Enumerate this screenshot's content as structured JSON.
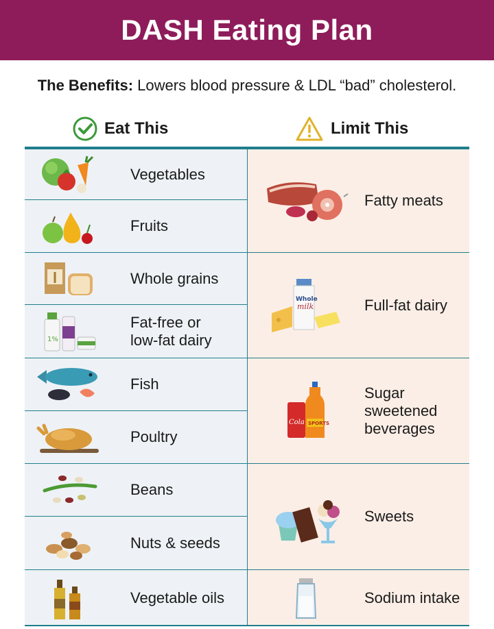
{
  "title": "DASH Eating Plan",
  "benefits": {
    "label": "The Benefits:",
    "text": " Lowers blood pressure & LDL “bad” cholesterol."
  },
  "eat": {
    "heading": "Eat This",
    "items": [
      {
        "label": "Vegetables",
        "icon": "vegetables-icon"
      },
      {
        "label": "Fruits",
        "icon": "fruits-icon"
      },
      {
        "label": "Whole grains",
        "icon": "whole-grains-icon"
      },
      {
        "label": "Fat-free or\nlow-fat dairy",
        "icon": "low-fat-dairy-icon"
      },
      {
        "label": "Fish",
        "icon": "fish-icon"
      },
      {
        "label": "Poultry",
        "icon": "poultry-icon"
      },
      {
        "label": "Beans",
        "icon": "beans-icon"
      },
      {
        "label": "Nuts & seeds",
        "icon": "nuts-seeds-icon"
      },
      {
        "label": "Vegetable oils",
        "icon": "vegetable-oils-icon"
      }
    ]
  },
  "limit": {
    "heading": "Limit This",
    "items": [
      {
        "label": "Fatty meats",
        "icon": "fatty-meats-icon"
      },
      {
        "label": "Full-fat dairy",
        "icon": "full-fat-dairy-icon",
        "milk_text": "Whole milk"
      },
      {
        "label": "Sugar\nsweetened\nbeverages",
        "icon": "sugar-beverages-icon",
        "can_text": "Cola",
        "bottle_text": "SPORTS"
      },
      {
        "label": "Sweets",
        "icon": "sweets-icon"
      },
      {
        "label": "Sodium intake",
        "icon": "salt-shaker-icon"
      }
    ]
  },
  "colors": {
    "banner": "#8e1c5a",
    "rule": "#1f7d8c",
    "eat_bg": "#eef2f6",
    "limit_bg": "#fbeee6",
    "check": "#3a9a3a",
    "warning": "#e0b22a"
  }
}
